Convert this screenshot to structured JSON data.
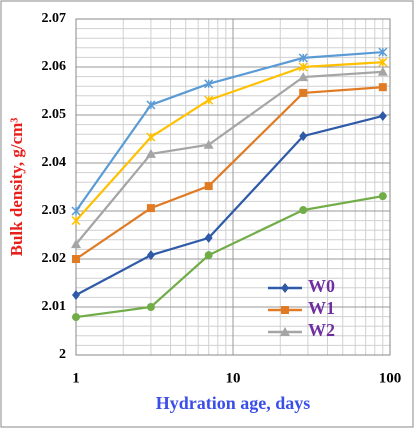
{
  "chart_data": {
    "type": "line",
    "xlabel": "Hydration age, days",
    "ylabel": "Bulk density, g/cm³",
    "xscale": "log",
    "xlim": [
      1,
      100
    ],
    "xticks": [
      1,
      10,
      100
    ],
    "ylim": [
      2,
      2.07
    ],
    "yticks": [
      2,
      2.01,
      2.02,
      2.03,
      2.04,
      2.05,
      2.06,
      2.07
    ],
    "grid": true,
    "minor_grid": true,
    "legend": "lower right",
    "x": [
      1,
      3,
      7,
      28,
      90
    ],
    "series": [
      {
        "color": "#70ad47",
        "marker": "circle",
        "values": [
          2.0079,
          2.01,
          2.0208,
          2.0302,
          2.0331
        ]
      },
      {
        "name": "W0",
        "color": "#2e5aa8",
        "marker": "diamond",
        "values": [
          2.0125,
          2.0208,
          2.0244,
          2.0456,
          2.0498
        ]
      },
      {
        "name": "W1",
        "color": "#e07b24",
        "marker": "square",
        "values": [
          2.02,
          2.0306,
          2.0352,
          2.0546,
          2.0558
        ]
      },
      {
        "name": "W2",
        "color": "#a5a5a5",
        "marker": "triangle",
        "values": [
          2.0231,
          2.0419,
          2.0438,
          2.0579,
          2.059
        ]
      },
      {
        "color": "#ffc000",
        "marker": "x",
        "values": [
          2.028,
          2.0454,
          2.0531,
          2.06,
          2.061
        ]
      },
      {
        "color": "#5b9bd5",
        "marker": "x",
        "values": [
          2.03,
          2.0521,
          2.0565,
          2.0619,
          2.0631
        ]
      }
    ]
  }
}
